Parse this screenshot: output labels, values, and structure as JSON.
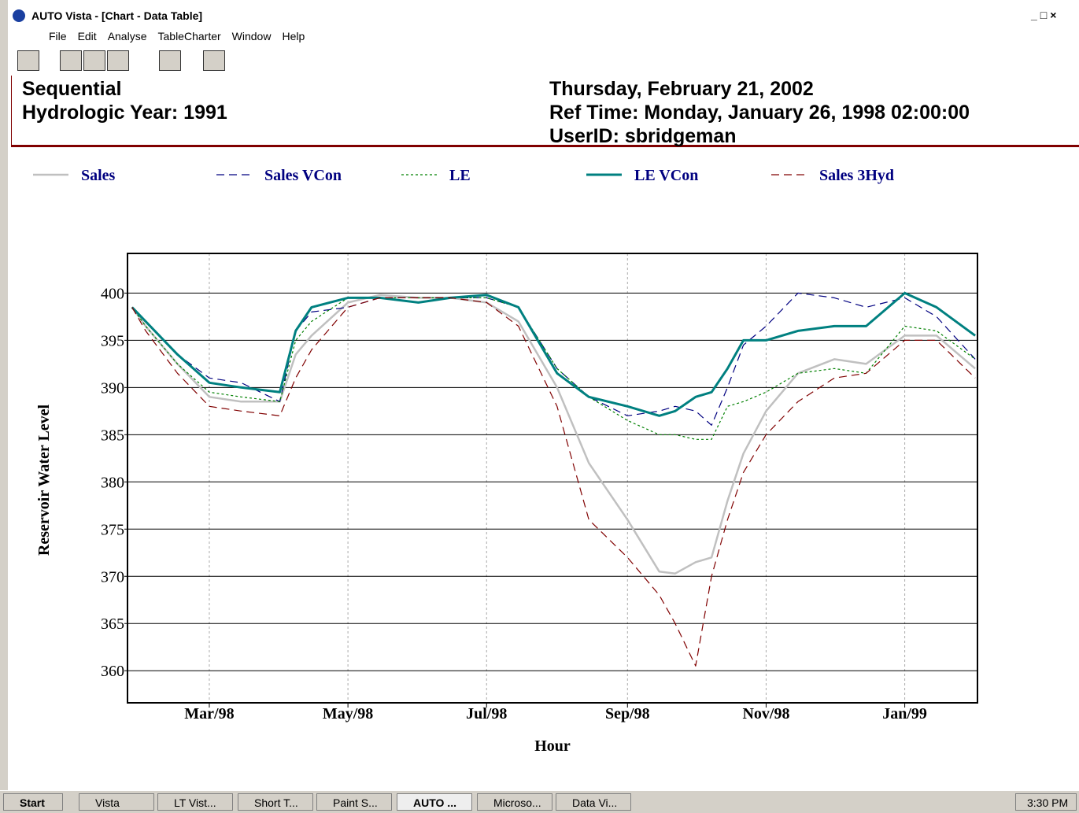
{
  "window": {
    "title": "AUTO Vista - [Chart - Data Table]",
    "menu": [
      "File",
      "Edit",
      "Analyse",
      "TableCharter",
      "Window",
      "Help"
    ]
  },
  "header": {
    "left": [
      "Sequential",
      "Hydrologic Year: 1991"
    ],
    "right": [
      "Thursday, February 21, 2002",
      "Ref Time: Monday, January 26, 1998 02:00:00",
      "UserID: sbridgeman"
    ]
  },
  "chart_data": {
    "type": "line",
    "xlabel": "Hour",
    "ylabel": "Reservoir Water Level",
    "legend": "top",
    "grid": true,
    "x": [
      "1998-01-26",
      "1998-02-01",
      "1998-02-15",
      "1998-03-01",
      "1998-03-15",
      "1998-04-01",
      "1998-04-08",
      "1998-04-15",
      "1998-05-01",
      "1998-05-15",
      "1998-06-01",
      "1998-06-15",
      "1998-07-01",
      "1998-07-15",
      "1998-08-01",
      "1998-08-15",
      "1998-09-01",
      "1998-09-15",
      "1998-09-22",
      "1998-10-01",
      "1998-10-08",
      "1998-10-15",
      "1998-10-22",
      "1998-11-01",
      "1998-11-15",
      "1998-12-01",
      "1998-12-15",
      "1999-01-01",
      "1999-01-15",
      "1999-02-01"
    ],
    "xlim": [
      "1998-01-24",
      "1999-02-02"
    ],
    "xticks": [
      {
        "value": "1998-03-01",
        "label": "Mar/98"
      },
      {
        "value": "1998-05-01",
        "label": "May/98"
      },
      {
        "value": "1998-07-01",
        "label": "Jul/98"
      },
      {
        "value": "1998-09-01",
        "label": "Sep/98"
      },
      {
        "value": "1998-11-01",
        "label": "Nov/98"
      },
      {
        "value": "1999-01-01",
        "label": "Jan/99"
      }
    ],
    "ylim": [
      356.6,
      404.2
    ],
    "yticks": [
      360,
      365,
      370,
      375,
      380,
      385,
      390,
      395,
      400
    ],
    "series": [
      {
        "name": "Sales",
        "color": "#c0c0c0",
        "style": "solid",
        "width": 2.5,
        "values": [
          398.5,
          396.5,
          392.5,
          389,
          388.5,
          388.5,
          393.5,
          395.5,
          399,
          399.8,
          399.5,
          399.5,
          399,
          397,
          390,
          382,
          376,
          370.5,
          370.3,
          371.5,
          372,
          378,
          383,
          387.5,
          391.5,
          393,
          392.5,
          395.5,
          395.5,
          392
        ]
      },
      {
        "name": "Sales VCon",
        "color": "#000080",
        "style": "dashed",
        "width": 1.2,
        "values": [
          398.5,
          397,
          393.5,
          391,
          390.5,
          388.5,
          396,
          398,
          398.5,
          399.5,
          399.5,
          399.5,
          399.5,
          398.5,
          392,
          389,
          387,
          387.5,
          388,
          387.5,
          386,
          390,
          394.5,
          396.5,
          400,
          399.5,
          398.5,
          399.5,
          397.5,
          393
        ]
      },
      {
        "name": "LE",
        "color": "#008000",
        "style": "dotted",
        "width": 1.2,
        "values": [
          398.5,
          396.5,
          392.5,
          389.5,
          389,
          388.5,
          395,
          397,
          399.5,
          399.5,
          399.5,
          399.5,
          399.5,
          398.5,
          392,
          389,
          386.5,
          385,
          385,
          384.5,
          384.5,
          388,
          388.5,
          389.5,
          391.5,
          392,
          391.5,
          396.5,
          396,
          393
        ]
      },
      {
        "name": "LE VCon",
        "color": "#008080",
        "style": "solid",
        "width": 3,
        "values": [
          398.5,
          397,
          393.5,
          390.5,
          390,
          389.5,
          396,
          398.5,
          399.5,
          399.5,
          399,
          399.5,
          399.8,
          398.5,
          391.5,
          389,
          388,
          387,
          387.5,
          389,
          389.5,
          392,
          395,
          395,
          396,
          396.5,
          396.5,
          400,
          398.5,
          395.5
        ]
      },
      {
        "name": "Sales 3Hyd",
        "color": "#800000",
        "style": "dashed",
        "width": 1.2,
        "values": [
          398.5,
          396,
          391.5,
          388,
          387.5,
          387,
          391,
          394,
          398.5,
          399.5,
          399.5,
          399.5,
          399,
          396.5,
          388,
          376,
          372,
          368,
          365,
          360.5,
          370,
          376,
          381,
          385,
          388.5,
          391,
          391.5,
          395,
          395,
          391
        ]
      }
    ]
  },
  "taskbar": {
    "start": "Start",
    "items": [
      "Vista",
      "LT Vist...",
      "Short T...",
      "Paint S...",
      "AUTO ...",
      "Microso...",
      "Data Vi..."
    ],
    "clock": "3:30 PM"
  }
}
